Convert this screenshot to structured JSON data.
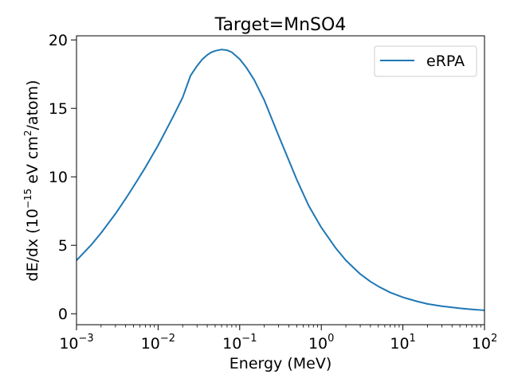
{
  "chart_data": {
    "type": "line",
    "title": "Target=MnSO4",
    "xlabel": "Energy (MeV)",
    "ylabel_prefix": "dE/dx (10",
    "ylabel_exp": "−15",
    "ylabel_mid": " eV cm",
    "ylabel_sq": "2",
    "ylabel_suffix": "/atom)",
    "xscale": "log",
    "xlim": [
      0.001,
      100
    ],
    "ylim": [
      -0.8,
      20.3
    ],
    "x_ticks": [
      {
        "value": 0.001,
        "base": "10",
        "exp": "−3"
      },
      {
        "value": 0.01,
        "base": "10",
        "exp": "−2"
      },
      {
        "value": 0.1,
        "base": "10",
        "exp": "−1"
      },
      {
        "value": 1,
        "base": "10",
        "exp": "0"
      },
      {
        "value": 10,
        "base": "10",
        "exp": "1"
      },
      {
        "value": 100,
        "base": "10",
        "exp": "2"
      }
    ],
    "y_ticks": [
      0,
      5,
      10,
      15,
      20
    ],
    "y_tick_labels": [
      "0",
      "5",
      "10",
      "15",
      "20"
    ],
    "grid": false,
    "legend": "top-right",
    "series": [
      {
        "name": "eRPA",
        "color": "#1f77b4",
        "x": [
          0.001,
          0.0015,
          0.002,
          0.003,
          0.004,
          0.005,
          0.007,
          0.01,
          0.015,
          0.02,
          0.025,
          0.03,
          0.035,
          0.04,
          0.045,
          0.05,
          0.06,
          0.07,
          0.08,
          0.1,
          0.12,
          0.15,
          0.2,
          0.3,
          0.4,
          0.5,
          0.7,
          1,
          1.5,
          2,
          3,
          4,
          5,
          7,
          10,
          15,
          20,
          30,
          50,
          70,
          100
        ],
        "y": [
          3.9,
          5.0,
          5.9,
          7.3,
          8.4,
          9.3,
          10.7,
          12.3,
          14.3,
          15.8,
          17.4,
          18.1,
          18.6,
          18.9,
          19.1,
          19.2,
          19.3,
          19.25,
          19.1,
          18.6,
          18.0,
          17.1,
          15.6,
          13.0,
          11.2,
          9.8,
          7.9,
          6.3,
          4.8,
          3.9,
          2.9,
          2.35,
          2.0,
          1.55,
          1.2,
          0.9,
          0.72,
          0.55,
          0.4,
          0.32,
          0.25
        ]
      }
    ]
  }
}
